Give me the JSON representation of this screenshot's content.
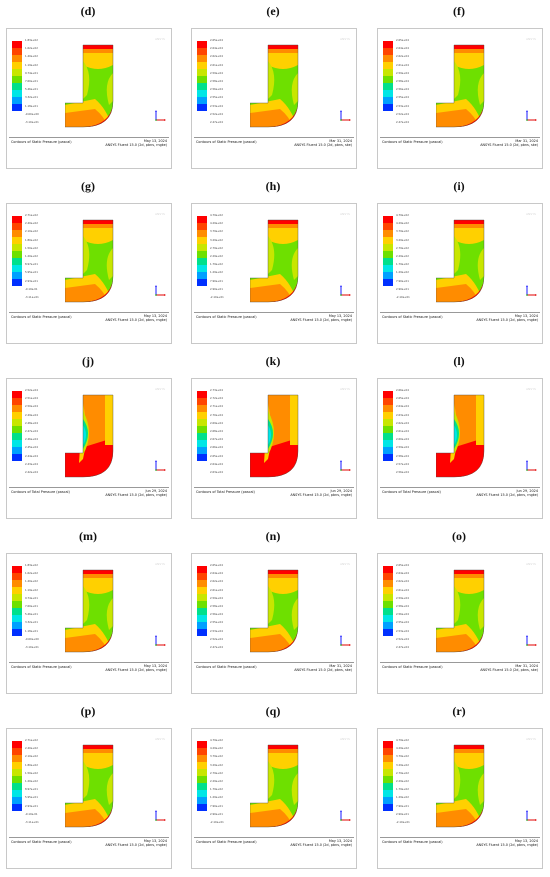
{
  "colormap": [
    "#ff0000",
    "#ff4500",
    "#ff8c00",
    "#ffd000",
    "#c8e600",
    "#6ee000",
    "#00e08c",
    "#00e6e6",
    "#00a0ff",
    "#0030ff"
  ],
  "panels": [
    {
      "label": "(d)",
      "variant": "static",
      "title": "Contours of Static Pressure (pascal)",
      "date": "May 13, 2024",
      "software": "ANSYS Fluent 15.0 (2d, pbns, rngke)",
      "ticks": [
        "1.83e+02",
        "1.62e+02",
        "1.40e+02",
        "1.19e+02",
        "9.74e+01",
        "7.60e+01",
        "5.46e+01",
        "3.32e+01",
        "1.18e+01",
        "-9.60e+00",
        "-3.10e+01"
      ]
    },
    {
      "label": "(e)",
      "variant": "static",
      "title": "Contours of Static Pressure (pascal)",
      "date": "Mar 31, 2024",
      "software": "ANSYS Fluent 15.0 (2d, pbns, ske)",
      "ticks": [
        "2.65e+04",
        "2.64e+04",
        "2.62e+04",
        "2.61e+04",
        "2.59e+04",
        "2.58e+04",
        "2.56e+04",
        "2.55e+04",
        "2.53e+04",
        "2.52e+04",
        "2.47e+04"
      ]
    },
    {
      "label": "(f)",
      "variant": "static",
      "title": "Contours of Static Pressure (pascal)",
      "date": "Mar 31, 2024",
      "software": "ANSYS Fluent 15.0 (2d, pbns, ske)",
      "ticks": [
        "2.65e+04",
        "2.64e+04",
        "2.62e+04",
        "2.61e+04",
        "2.59e+04",
        "2.58e+04",
        "2.56e+04",
        "2.55e+04",
        "2.53e+04",
        "2.52e+04",
        "2.47e+04"
      ]
    },
    {
      "label": "(g)",
      "variant": "static",
      "title": "Contours of Static Pressure (pascal)",
      "date": "May 13, 2024",
      "software": "ANSYS Fluent 15.0 (2d, pbns, rngke)",
      "ticks": [
        "2.71e+02",
        "2.40e+02",
        "2.10e+02",
        "1.80e+02",
        "1.50e+02",
        "1.20e+02",
        "8.97e+01",
        "5.95e+01",
        "2.93e+01",
        "-9.19e-01",
        "-3.11e+01"
      ]
    },
    {
      "label": "(h)",
      "variant": "static",
      "title": "Contours of Static Pressure (pascal)",
      "date": "May 13, 2024",
      "software": "ANSYS Fluent 15.0 (2d, pbns, rngke)",
      "ticks": [
        "4.79e+02",
        "4.29e+02",
        "3.79e+02",
        "3.29e+02",
        "2.79e+02",
        "2.29e+02",
        "1.79e+02",
        "1.29e+02",
        "7.90e+01",
        "2.90e+01",
        "-2.10e+01"
      ]
    },
    {
      "label": "(i)",
      "variant": "static",
      "title": "Contours of Static Pressure (pascal)",
      "date": "May 13, 2024",
      "software": "ANSYS Fluent 15.0 (2d, pbns, rngke)",
      "ticks": [
        "4.79e+02",
        "4.29e+02",
        "3.79e+02",
        "3.29e+02",
        "2.79e+02",
        "2.29e+02",
        "1.79e+02",
        "1.29e+02",
        "7.90e+01",
        "2.90e+01",
        "-2.10e+01"
      ]
    },
    {
      "label": "(j)",
      "variant": "total",
      "title": "Contours of Total Pressure (pascal)",
      "date": "Jun 29, 2024",
      "software": "ANSYS Fluent 15.0 (2d, pbns, rngke)",
      "ticks": [
        "2.52e+04",
        "2.51e+04",
        "2.50e+04",
        "2.49e+04",
        "2.48e+04",
        "2.47e+04",
        "2.46e+04",
        "2.45e+04",
        "2.44e+04",
        "2.43e+04",
        "2.42e+04"
      ]
    },
    {
      "label": "(k)",
      "variant": "total",
      "title": "Contours of Total Pressure (pascal)",
      "date": "Jun 29, 2024",
      "software": "ANSYS Fluent 15.0 (2d, pbns, rngke)",
      "ticks": [
        "2.73e+04",
        "2.72e+04",
        "2.71e+04",
        "2.70e+04",
        "2.69e+04",
        "2.68e+04",
        "2.67e+04",
        "2.66e+04",
        "2.65e+04",
        "2.64e+04",
        "2.63e+04"
      ]
    },
    {
      "label": "(l)",
      "variant": "total",
      "title": "Contours of Total Pressure (pascal)",
      "date": "Jun 29, 2024",
      "software": "ANSYS Fluent 15.0 (2d, pbns, rngke)",
      "ticks": [
        "2.66e+04",
        "2.65e+04",
        "2.64e+04",
        "2.63e+04",
        "2.62e+04",
        "2.61e+04",
        "2.60e+04",
        "2.59e+04",
        "2.58e+04",
        "2.57e+04",
        "2.56e+04"
      ]
    },
    {
      "label": "(m)",
      "variant": "static",
      "title": "Contours of Static Pressure (pascal)",
      "date": "May 13, 2024",
      "software": "ANSYS Fluent 15.0 (2d, pbns, rngke)",
      "ticks": [
        "1.83e+02",
        "1.62e+02",
        "1.40e+02",
        "1.19e+02",
        "9.74e+01",
        "7.60e+01",
        "5.46e+01",
        "3.32e+01",
        "1.18e+01",
        "-9.60e+00",
        "-3.10e+01"
      ]
    },
    {
      "label": "(n)",
      "variant": "static",
      "title": "Contours of Static Pressure (pascal)",
      "date": "Mar 31, 2024",
      "software": "ANSYS Fluent 15.0 (2d, pbns, ske)",
      "ticks": [
        "2.65e+04",
        "2.64e+04",
        "2.62e+04",
        "2.61e+04",
        "2.59e+04",
        "2.58e+04",
        "2.56e+04",
        "2.55e+04",
        "2.53e+04",
        "2.52e+04",
        "2.47e+04"
      ]
    },
    {
      "label": "(o)",
      "variant": "static",
      "title": "Contours of Static Pressure (pascal)",
      "date": "Mar 31, 2024",
      "software": "ANSYS Fluent 15.0 (2d, pbns, ske)",
      "ticks": [
        "2.65e+04",
        "2.64e+04",
        "2.62e+04",
        "2.61e+04",
        "2.59e+04",
        "2.58e+04",
        "2.56e+04",
        "2.55e+04",
        "2.53e+04",
        "2.52e+04",
        "2.47e+04"
      ]
    },
    {
      "label": "(p)",
      "variant": "static",
      "title": "Contours of Static Pressure (pascal)",
      "date": "May 13, 2024",
      "software": "ANSYS Fluent 15.0 (2d, pbns, rngke)",
      "ticks": [
        "2.71e+02",
        "2.40e+02",
        "2.10e+02",
        "1.80e+02",
        "1.50e+02",
        "1.20e+02",
        "8.97e+01",
        "5.95e+01",
        "2.93e+01",
        "-9.19e-01",
        "-3.11e+01"
      ]
    },
    {
      "label": "(q)",
      "variant": "static",
      "title": "Contours of Static Pressure (pascal)",
      "date": "May 13, 2024",
      "software": "ANSYS Fluent 15.0 (2d, pbns, rngke)",
      "ticks": [
        "4.79e+02",
        "4.29e+02",
        "3.79e+02",
        "3.29e+02",
        "2.79e+02",
        "2.29e+02",
        "1.79e+02",
        "1.29e+02",
        "7.90e+01",
        "2.90e+01",
        "-2.10e+01"
      ]
    },
    {
      "label": "(r)",
      "variant": "static",
      "title": "Contours of Static Pressure (pascal)",
      "date": "May 13, 2024",
      "software": "ANSYS Fluent 15.0 (2d, pbns, rngke)",
      "ticks": [
        "4.79e+02",
        "4.29e+02",
        "3.79e+02",
        "3.29e+02",
        "2.79e+02",
        "2.29e+02",
        "1.79e+02",
        "1.29e+02",
        "7.90e+01",
        "2.90e+01",
        "-2.10e+01"
      ]
    }
  ]
}
